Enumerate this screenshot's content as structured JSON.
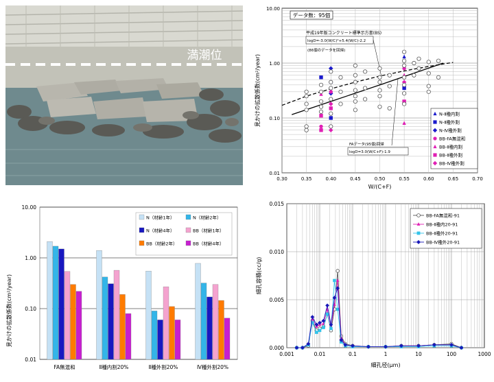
{
  "photo": {
    "label": "満潮位",
    "colors": {
      "sky_wall": "#cfcfc7",
      "sea": "#6f8a8e",
      "rocks": "#5a5a55",
      "line": "#ffffff"
    }
  },
  "chart_data": [
    {
      "id": "scatter",
      "type": "scatter",
      "title": "データ数：95個",
      "xlabel": "W/(C+F)",
      "ylabel": "見かけの拡散係数(cm²/year)",
      "xlim": [
        0.3,
        0.7
      ],
      "ylim": [
        0.01,
        10
      ],
      "yscale": "log",
      "xticks": [
        "0.30",
        "0.35",
        "0.40",
        "0.45",
        "0.50",
        "0.55",
        "0.60",
        "0.65",
        "0.70"
      ],
      "yticks": [
        "10.00",
        "1.00",
        "0.10",
        "0.01"
      ],
      "grid": true,
      "annotations": [
        "平成19年版コンクリート標準示方書(BS)",
        "logD=-3.0(W/C)²+5.4(W/C)-2.2",
        "(86個のデータを回帰)",
        "FAデータ(95個)回帰",
        "logD=3.0(W/C+F)-1.9"
      ],
      "curves": [
        {
          "name": "BS",
          "style": "dashed",
          "x": [
            0.3,
            0.35,
            0.4,
            0.45,
            0.5,
            0.55,
            0.6,
            0.65
          ],
          "y": [
            0.17,
            0.25,
            0.34,
            0.45,
            0.58,
            0.72,
            0.87,
            1.03
          ]
        },
        {
          "name": "FA",
          "style": "solid",
          "x": [
            0.32,
            0.4,
            0.5,
            0.63
          ],
          "y": [
            0.115,
            0.2,
            0.4,
            1.0
          ]
        }
      ],
      "series": [
        {
          "name": "N-Ⅱ種内割",
          "marker": "triangle",
          "color": "#1a1acc",
          "points": [
            [
              0.55,
              1.3
            ],
            [
              0.4,
              0.45
            ]
          ]
        },
        {
          "name": "N-Ⅱ種外割",
          "marker": "square",
          "color": "#1a1acc",
          "points": [
            [
              0.38,
              0.55
            ],
            [
              0.4,
              0.1
            ],
            [
              0.55,
              0.35
            ]
          ]
        },
        {
          "name": "N-Ⅳ種外割",
          "marker": "diamond",
          "color": "#1a1acc",
          "points": [
            [
              0.4,
              0.8
            ],
            [
              0.4,
              0.28
            ]
          ]
        },
        {
          "name": "BB-FA無混和",
          "marker": "circle",
          "color": "#e01fb4",
          "points": [
            [
              0.55,
              0.8
            ],
            [
              0.4,
              0.3
            ],
            [
              0.38,
              0.07
            ]
          ]
        },
        {
          "name": "BB-Ⅱ種内割",
          "marker": "triangle",
          "color": "#e01fb4",
          "points": [
            [
              0.55,
              0.08
            ],
            [
              0.38,
              0.27
            ],
            [
              0.55,
              0.6
            ]
          ]
        },
        {
          "name": "BB-Ⅱ種外割",
          "marker": "square",
          "color": "#e01fb4",
          "points": [
            [
              0.38,
              0.06
            ],
            [
              0.55,
              0.2
            ],
            [
              0.4,
              0.15
            ],
            [
              0.38,
              0.11
            ]
          ]
        },
        {
          "name": "BB-Ⅳ種外割",
          "marker": "diamond",
          "color": "#e01fb4",
          "points": [
            [
              0.4,
              0.06
            ],
            [
              0.55,
              0.45
            ],
            [
              0.4,
              0.18
            ]
          ]
        },
        {
          "name": "",
          "marker": "open-circle",
          "color": "#555555",
          "points": [
            [
              0.35,
              0.3
            ],
            [
              0.35,
              0.25
            ],
            [
              0.35,
              0.18
            ],
            [
              0.35,
              0.14
            ],
            [
              0.35,
              0.07
            ],
            [
              0.35,
              0.06
            ],
            [
              0.38,
              0.4
            ],
            [
              0.38,
              0.3
            ],
            [
              0.38,
              0.2
            ],
            [
              0.38,
              0.16
            ],
            [
              0.38,
              0.13
            ],
            [
              0.4,
              0.7
            ],
            [
              0.4,
              0.45
            ],
            [
              0.4,
              0.35
            ],
            [
              0.4,
              0.22
            ],
            [
              0.4,
              0.12
            ],
            [
              0.4,
              0.07
            ],
            [
              0.42,
              0.55
            ],
            [
              0.42,
              0.3
            ],
            [
              0.42,
              0.18
            ],
            [
              0.45,
              0.9
            ],
            [
              0.45,
              0.6
            ],
            [
              0.45,
              0.45
            ],
            [
              0.45,
              0.32
            ],
            [
              0.45,
              0.25
            ],
            [
              0.45,
              0.2
            ],
            [
              0.45,
              0.14
            ],
            [
              0.47,
              0.7
            ],
            [
              0.47,
              0.35
            ],
            [
              0.47,
              0.22
            ],
            [
              0.5,
              0.8
            ],
            [
              0.5,
              0.55
            ],
            [
              0.5,
              0.45
            ],
            [
              0.5,
              0.32
            ],
            [
              0.5,
              0.25
            ],
            [
              0.5,
              0.16
            ],
            [
              0.52,
              0.6
            ],
            [
              0.52,
              0.38
            ],
            [
              0.52,
              0.15
            ],
            [
              0.55,
              1.6
            ],
            [
              0.55,
              1.1
            ],
            [
              0.55,
              0.9
            ],
            [
              0.55,
              0.55
            ],
            [
              0.55,
              0.4
            ],
            [
              0.55,
              0.28
            ],
            [
              0.55,
              0.18
            ],
            [
              0.57,
              1.0
            ],
            [
              0.57,
              0.6
            ],
            [
              0.58,
              1.2
            ],
            [
              0.58,
              0.8
            ],
            [
              0.6,
              1.05
            ],
            [
              0.6,
              0.65
            ],
            [
              0.6,
              0.38
            ],
            [
              0.6,
              0.3
            ],
            [
              0.62,
              1.1
            ],
            [
              0.62,
              0.55
            ]
          ]
        }
      ]
    },
    {
      "id": "bar",
      "type": "bar",
      "ylabel": "見かけの拡散係数(cm²/year)",
      "yscale": "log",
      "ylim": [
        0.01,
        10
      ],
      "yticks": [
        "10.00",
        "1.00",
        "0.10",
        "0.01"
      ],
      "categories": [
        "FA無混和",
        "Ⅱ種内割20%",
        "Ⅱ種外割20%",
        "Ⅳ種外割20%"
      ],
      "series": [
        {
          "name": "N（材齢1年）",
          "color": "#c5e1f5",
          "values": [
            2.1,
            1.4,
            0.55,
            0.78
          ]
        },
        {
          "name": "N（材齢2年）",
          "color": "#33b5e8",
          "values": [
            1.7,
            0.42,
            0.09,
            0.32
          ]
        },
        {
          "name": "N（材齢4年）",
          "color": "#1818c0",
          "values": [
            1.5,
            0.31,
            0.06,
            0.17
          ]
        },
        {
          "name": "BB（材齢1年）",
          "color": "#f4a3cf",
          "values": [
            0.54,
            0.57,
            0.27,
            0.3
          ]
        },
        {
          "name": "BB（材齢2年）",
          "color": "#ff7b00",
          "values": [
            0.3,
            0.19,
            0.11,
            0.145
          ]
        },
        {
          "name": "BB（材齢4年）",
          "color": "#c71fd0",
          "values": [
            0.22,
            0.08,
            0.06,
            0.065
          ]
        }
      ],
      "legend": "top-right",
      "grid": true
    },
    {
      "id": "pore",
      "type": "line",
      "xlabel": "細孔径(μm)",
      "ylabel": "細孔容積(cc/g)",
      "xscale": "log",
      "xlim": [
        0.001,
        1000
      ],
      "ylim": [
        0,
        0.015
      ],
      "xticks": [
        "0.001",
        "0.01",
        "0.1",
        "1",
        "10",
        "100",
        "1000"
      ],
      "yticks": [
        "0.015",
        "0.010",
        "0.005",
        "0.000"
      ],
      "legend": "top-right",
      "grid": true,
      "x": [
        0.002,
        0.003,
        0.0045,
        0.006,
        0.008,
        0.01,
        0.013,
        0.017,
        0.022,
        0.028,
        0.035,
        0.045,
        0.06,
        0.1,
        0.3,
        1,
        3,
        10,
        30,
        100,
        200
      ],
      "series": [
        {
          "name": "BB-FA無混和-91",
          "color": "#555555",
          "marker": "open-circle",
          "values": [
            0,
            0,
            0.0002,
            0.0028,
            0.0018,
            0.002,
            0.0022,
            0.0035,
            0.0018,
            0.004,
            0.008,
            0.0012,
            0.0004,
            0.0002,
            0.0001,
            0.0001,
            0.0002,
            0.0002,
            0.0003,
            0.0004,
            0
          ]
        },
        {
          "name": "BB-Ⅱ種内20-91",
          "color": "#e01fb4",
          "marker": "triangle",
          "values": [
            0,
            0,
            0.0003,
            0.003,
            0.0022,
            0.0024,
            0.0025,
            0.004,
            0.0022,
            0.0045,
            0.007,
            0.001,
            0.0003,
            0.0002,
            0.0001,
            0.0001,
            0.0002,
            0.0002,
            0.0003,
            0.0003,
            0
          ]
        },
        {
          "name": "BB-Ⅱ種外20-91",
          "color": "#33c4ea",
          "marker": "square",
          "values": [
            0,
            0,
            0.0003,
            0.0026,
            0.0016,
            0.0018,
            0.0021,
            0.0035,
            0.002,
            0.007,
            0.004,
            0.0006,
            0.0002,
            0.0001,
            0.0001,
            0.0001,
            0.0001,
            0.0001,
            0.0002,
            0.0002,
            0
          ]
        },
        {
          "name": "BB-Ⅳ種外20-91",
          "color": "#1818b8",
          "marker": "diamond",
          "values": [
            0,
            0,
            0.0004,
            0.0032,
            0.0024,
            0.0026,
            0.0028,
            0.0044,
            0.0024,
            0.0052,
            0.0062,
            0.0008,
            0.0003,
            0.0002,
            0.0001,
            0.0001,
            0.0002,
            0.0002,
            0.0003,
            0.0003,
            0
          ]
        }
      ]
    }
  ]
}
